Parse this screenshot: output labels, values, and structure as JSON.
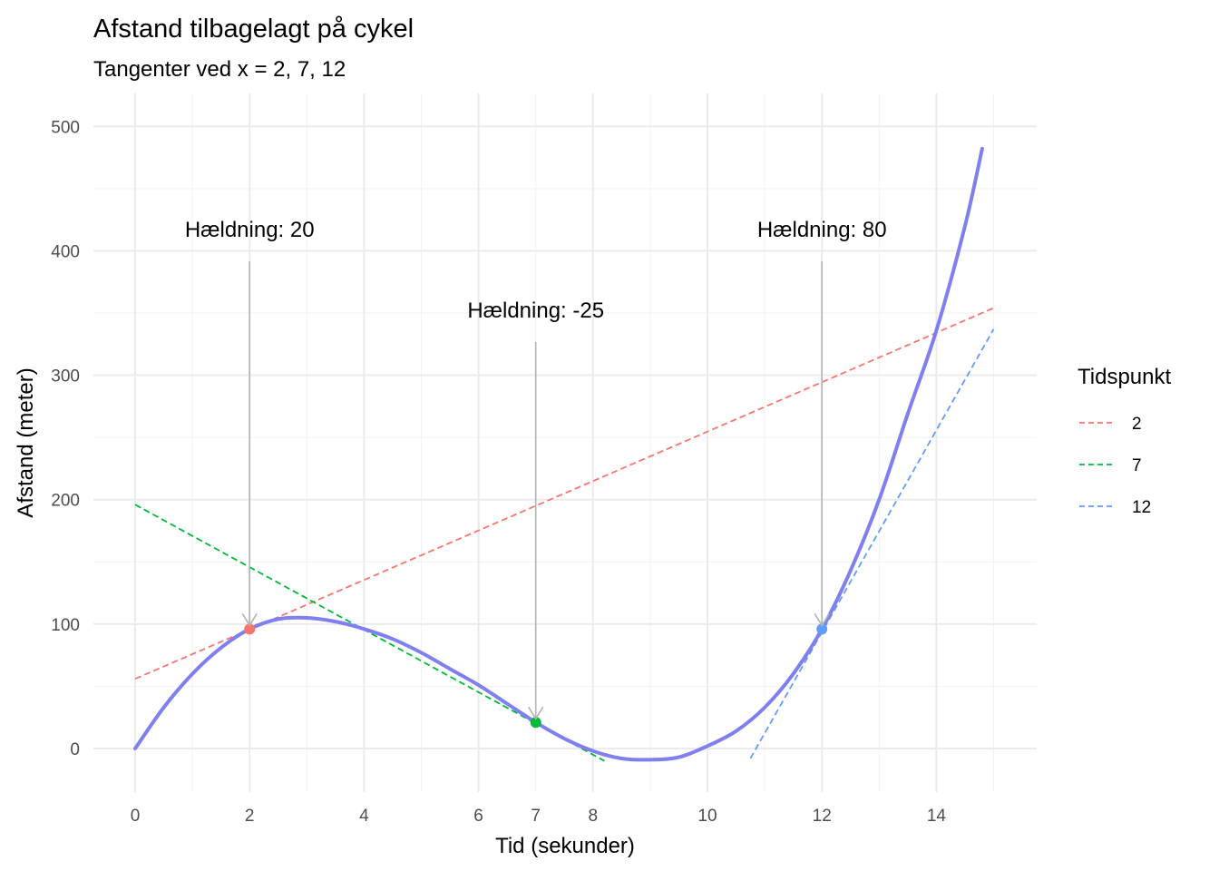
{
  "chart_data": {
    "type": "line",
    "title": "Afstand tilbagelagt på cykel",
    "subtitle": "Tangenter ved x = 2, 7, 12",
    "xlabel": "Tid (sekunder)",
    "ylabel": "Afstand (meter)",
    "xlim": [
      0,
      15
    ],
    "ylim": [
      -10,
      500
    ],
    "x_ticks": [
      0,
      2,
      4,
      6,
      7,
      8,
      10,
      12,
      14
    ],
    "y_ticks": [
      0,
      100,
      200,
      300,
      400,
      500
    ],
    "grid": true,
    "curve": {
      "color": "#7f7ff0",
      "x": [
        0,
        0.5,
        1,
        1.5,
        2,
        2.5,
        3,
        3.5,
        4,
        4.5,
        5,
        5.5,
        6,
        6.5,
        7,
        7.5,
        8,
        8.5,
        9,
        9.5,
        10,
        10.5,
        11,
        11.5,
        12,
        12.5,
        13,
        13.5,
        14,
        14.5,
        14.8
      ],
      "y": [
        0,
        33,
        60,
        81,
        96,
        104,
        105,
        102,
        96,
        88,
        77,
        64,
        51,
        36,
        21,
        8,
        -2,
        -8,
        -9,
        -7,
        2,
        14,
        33,
        60,
        96,
        143,
        200,
        269,
        336,
        420,
        482
      ]
    },
    "points": [
      {
        "x": 2,
        "y": 96,
        "color": "#f8766d"
      },
      {
        "x": 7,
        "y": 21,
        "color": "#00ba38"
      },
      {
        "x": 12,
        "y": 96,
        "color": "#619cff"
      }
    ],
    "series": [
      {
        "name": "2",
        "color": "#f8766d",
        "x": [
          0,
          15
        ],
        "y": [
          56,
          354
        ]
      },
      {
        "name": "7",
        "color": "#00ba38",
        "x": [
          0,
          8.2
        ],
        "y": [
          196,
          -10
        ]
      },
      {
        "name": "12",
        "color": "#619cff",
        "x": [
          10.75,
          15
        ],
        "y": [
          -8,
          337
        ]
      }
    ],
    "annotations": [
      {
        "text": "Hældning: 20",
        "x": 2,
        "y": 380,
        "arrow_to": [
          2,
          96
        ]
      },
      {
        "text": "Hældning: -25",
        "x": 7,
        "y": 315,
        "arrow_to": [
          7,
          21
        ]
      },
      {
        "text": "Hældning: 80",
        "x": 12,
        "y": 380,
        "arrow_to": [
          12,
          96
        ]
      }
    ],
    "legend": {
      "title": "Tidspunkt",
      "position": "right",
      "entries": [
        "2",
        "7",
        "12"
      ]
    }
  }
}
